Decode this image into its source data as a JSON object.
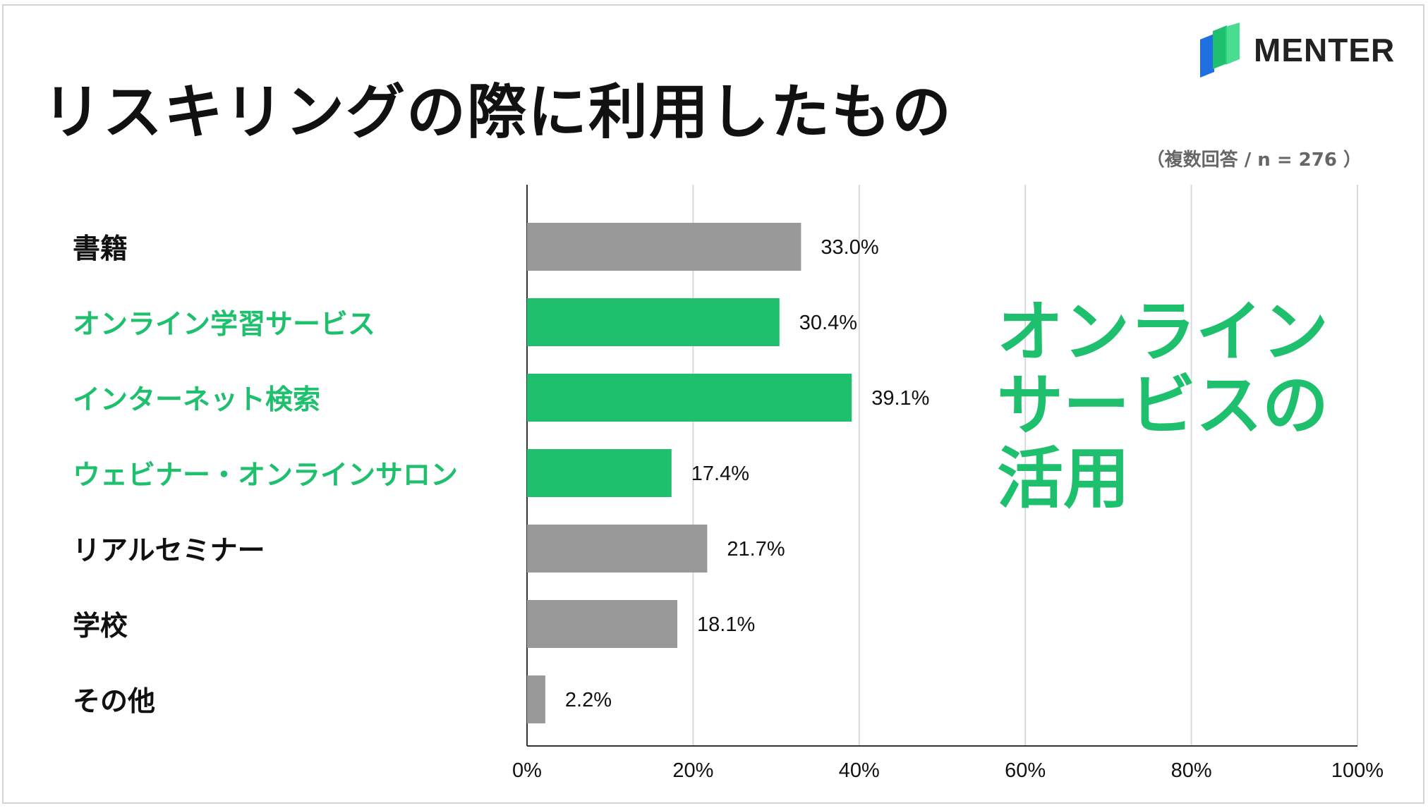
{
  "title": "リスキリングの際に利用したもの",
  "logo": {
    "text": "MENTER",
    "icon": "menter-logo-icon"
  },
  "note": "（複数回答 / n = 276 ）",
  "callout": [
    "オンライン",
    "サービスの",
    "活用"
  ],
  "colors": {
    "highlight": "#1ec06e",
    "default_bar": "#999999",
    "text": "#111111",
    "grid": "#d9d9d9"
  },
  "chart_data": {
    "type": "bar",
    "orientation": "horizontal",
    "categories": [
      "書籍",
      "オンライン学習サービス",
      "インターネット検索",
      "ウェビナー・オンラインサロン",
      "リアルセミナー",
      "学校",
      "その他"
    ],
    "values": [
      33.0,
      30.4,
      39.1,
      17.4,
      21.7,
      18.1,
      2.2
    ],
    "value_labels": [
      "33.0%",
      "30.4%",
      "39.1%",
      "17.4%",
      "21.7%",
      "18.1%",
      "2.2%"
    ],
    "highlighted": [
      false,
      true,
      true,
      true,
      false,
      false,
      false
    ],
    "xlim": [
      0,
      100
    ],
    "xticks": [
      "0%",
      "20%",
      "40%",
      "60%",
      "80%",
      "100%"
    ],
    "grid": true
  }
}
